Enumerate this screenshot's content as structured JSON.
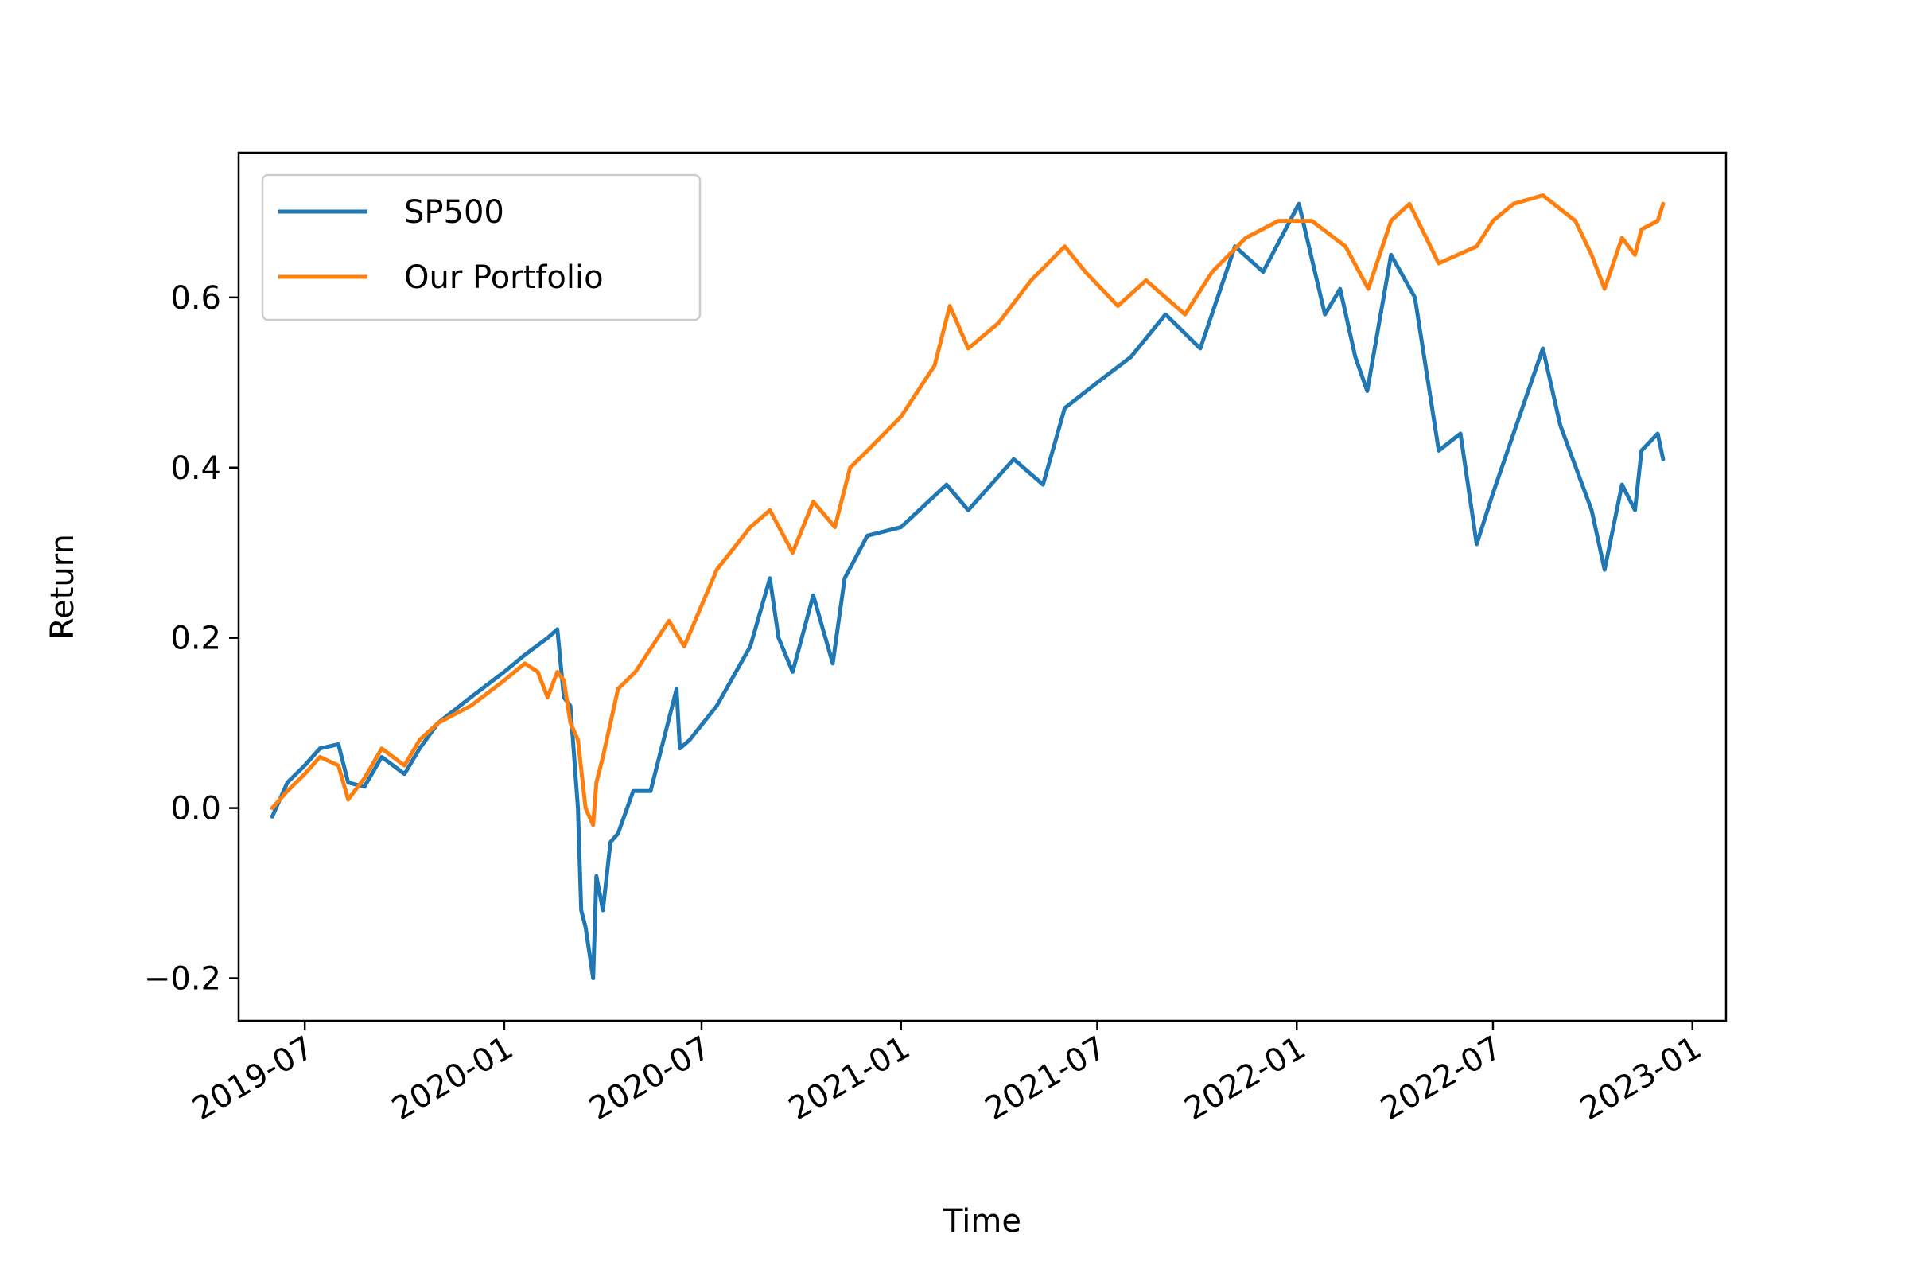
{
  "chart_data": {
    "type": "line",
    "xlabel": "Time",
    "ylabel": "Return",
    "xlim": [
      "2019-05-01",
      "2023-02-01"
    ],
    "ylim": [
      -0.25,
      0.77
    ],
    "x_ticks": [
      "2019-07",
      "2020-01",
      "2020-07",
      "2021-01",
      "2021-07",
      "2022-01",
      "2022-07",
      "2023-01"
    ],
    "y_ticks": [
      -0.2,
      0.0,
      0.2,
      0.4,
      0.6
    ],
    "y_tick_labels": [
      "−0.2",
      "0.0",
      "0.2",
      "0.4",
      "0.6"
    ],
    "grid": false,
    "legend_position": "top-left",
    "series": [
      {
        "name": "SP500",
        "color": "#1f77b4",
        "points": [
          [
            "2019-06-01",
            -0.01
          ],
          [
            "2019-06-15",
            0.03
          ],
          [
            "2019-07-01",
            0.05
          ],
          [
            "2019-07-15",
            0.07
          ],
          [
            "2019-08-01",
            0.075
          ],
          [
            "2019-08-10",
            0.03
          ],
          [
            "2019-08-25",
            0.025
          ],
          [
            "2019-09-10",
            0.06
          ],
          [
            "2019-10-01",
            0.04
          ],
          [
            "2019-10-15",
            0.07
          ],
          [
            "2019-11-01",
            0.1
          ],
          [
            "2019-12-01",
            0.13
          ],
          [
            "2020-01-01",
            0.16
          ],
          [
            "2020-01-20",
            0.18
          ],
          [
            "2020-02-10",
            0.2
          ],
          [
            "2020-02-19",
            0.21
          ],
          [
            "2020-02-25",
            0.13
          ],
          [
            "2020-03-02",
            0.12
          ],
          [
            "2020-03-09",
            0.0
          ],
          [
            "2020-03-12",
            -0.12
          ],
          [
            "2020-03-16",
            -0.14
          ],
          [
            "2020-03-23",
            -0.2
          ],
          [
            "2020-03-26",
            -0.08
          ],
          [
            "2020-04-01",
            -0.12
          ],
          [
            "2020-04-08",
            -0.04
          ],
          [
            "2020-04-15",
            -0.03
          ],
          [
            "2020-04-29",
            0.02
          ],
          [
            "2020-05-15",
            0.02
          ],
          [
            "2020-06-08",
            0.14
          ],
          [
            "2020-06-11",
            0.07
          ],
          [
            "2020-06-20",
            0.08
          ],
          [
            "2020-07-15",
            0.12
          ],
          [
            "2020-08-15",
            0.19
          ],
          [
            "2020-09-02",
            0.27
          ],
          [
            "2020-09-10",
            0.2
          ],
          [
            "2020-09-23",
            0.16
          ],
          [
            "2020-10-12",
            0.25
          ],
          [
            "2020-10-30",
            0.17
          ],
          [
            "2020-11-10",
            0.27
          ],
          [
            "2020-12-01",
            0.32
          ],
          [
            "2021-01-01",
            0.33
          ],
          [
            "2021-02-12",
            0.38
          ],
          [
            "2021-03-04",
            0.35
          ],
          [
            "2021-04-15",
            0.41
          ],
          [
            "2021-05-12",
            0.38
          ],
          [
            "2021-06-01",
            0.47
          ],
          [
            "2021-07-01",
            0.5
          ],
          [
            "2021-08-01",
            0.53
          ],
          [
            "2021-09-02",
            0.58
          ],
          [
            "2021-10-04",
            0.54
          ],
          [
            "2021-11-05",
            0.66
          ],
          [
            "2021-12-01",
            0.63
          ],
          [
            "2022-01-03",
            0.71
          ],
          [
            "2022-01-27",
            0.58
          ],
          [
            "2022-02-10",
            0.61
          ],
          [
            "2022-02-24",
            0.53
          ],
          [
            "2022-03-07",
            0.49
          ],
          [
            "2022-03-29",
            0.65
          ],
          [
            "2022-04-20",
            0.6
          ],
          [
            "2022-05-12",
            0.42
          ],
          [
            "2022-06-01",
            0.44
          ],
          [
            "2022-06-16",
            0.31
          ],
          [
            "2022-07-01",
            0.37
          ],
          [
            "2022-08-16",
            0.54
          ],
          [
            "2022-09-01",
            0.45
          ],
          [
            "2022-09-30",
            0.35
          ],
          [
            "2022-10-12",
            0.28
          ],
          [
            "2022-10-28",
            0.38
          ],
          [
            "2022-11-09",
            0.35
          ],
          [
            "2022-11-15",
            0.42
          ],
          [
            "2022-11-30",
            0.44
          ],
          [
            "2022-12-05",
            0.41
          ]
        ]
      },
      {
        "name": "Our Portfolio",
        "color": "#ff7f0e",
        "points": [
          [
            "2019-06-01",
            0.0
          ],
          [
            "2019-06-15",
            0.02
          ],
          [
            "2019-07-01",
            0.04
          ],
          [
            "2019-07-15",
            0.06
          ],
          [
            "2019-08-01",
            0.05
          ],
          [
            "2019-08-10",
            0.01
          ],
          [
            "2019-08-25",
            0.035
          ],
          [
            "2019-09-10",
            0.07
          ],
          [
            "2019-10-01",
            0.05
          ],
          [
            "2019-10-15",
            0.08
          ],
          [
            "2019-11-01",
            0.1
          ],
          [
            "2019-12-01",
            0.12
          ],
          [
            "2020-01-01",
            0.15
          ],
          [
            "2020-01-20",
            0.17
          ],
          [
            "2020-02-01",
            0.16
          ],
          [
            "2020-02-10",
            0.13
          ],
          [
            "2020-02-19",
            0.16
          ],
          [
            "2020-02-25",
            0.15
          ],
          [
            "2020-03-02",
            0.1
          ],
          [
            "2020-03-09",
            0.08
          ],
          [
            "2020-03-16",
            0.0
          ],
          [
            "2020-03-23",
            -0.02
          ],
          [
            "2020-03-26",
            0.03
          ],
          [
            "2020-04-01",
            0.06
          ],
          [
            "2020-04-15",
            0.14
          ],
          [
            "2020-05-01",
            0.16
          ],
          [
            "2020-06-01",
            0.22
          ],
          [
            "2020-06-15",
            0.19
          ],
          [
            "2020-07-15",
            0.28
          ],
          [
            "2020-08-15",
            0.33
          ],
          [
            "2020-09-02",
            0.35
          ],
          [
            "2020-09-23",
            0.3
          ],
          [
            "2020-10-12",
            0.36
          ],
          [
            "2020-11-01",
            0.33
          ],
          [
            "2020-11-15",
            0.4
          ],
          [
            "2020-12-01",
            0.42
          ],
          [
            "2021-01-01",
            0.46
          ],
          [
            "2021-02-01",
            0.52
          ],
          [
            "2021-02-15",
            0.59
          ],
          [
            "2021-03-04",
            0.54
          ],
          [
            "2021-04-01",
            0.57
          ],
          [
            "2021-05-01",
            0.62
          ],
          [
            "2021-06-01",
            0.66
          ],
          [
            "2021-06-20",
            0.63
          ],
          [
            "2021-07-20",
            0.59
          ],
          [
            "2021-08-15",
            0.62
          ],
          [
            "2021-09-20",
            0.58
          ],
          [
            "2021-10-15",
            0.63
          ],
          [
            "2021-11-15",
            0.67
          ],
          [
            "2021-12-15",
            0.69
          ],
          [
            "2022-01-15",
            0.69
          ],
          [
            "2022-02-15",
            0.66
          ],
          [
            "2022-03-08",
            0.61
          ],
          [
            "2022-03-29",
            0.69
          ],
          [
            "2022-04-15",
            0.71
          ],
          [
            "2022-05-12",
            0.64
          ],
          [
            "2022-06-16",
            0.66
          ],
          [
            "2022-07-01",
            0.69
          ],
          [
            "2022-07-20",
            0.71
          ],
          [
            "2022-08-16",
            0.72
          ],
          [
            "2022-09-15",
            0.69
          ],
          [
            "2022-09-30",
            0.65
          ],
          [
            "2022-10-12",
            0.61
          ],
          [
            "2022-10-28",
            0.67
          ],
          [
            "2022-11-09",
            0.65
          ],
          [
            "2022-11-15",
            0.68
          ],
          [
            "2022-11-30",
            0.69
          ],
          [
            "2022-12-05",
            0.71
          ]
        ]
      }
    ]
  }
}
